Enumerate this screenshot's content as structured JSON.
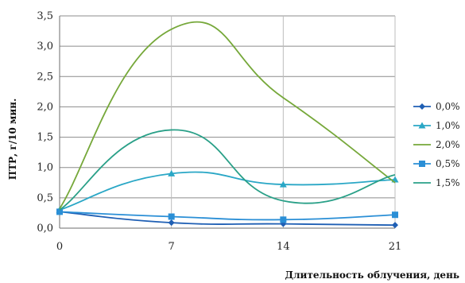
{
  "chart_data": {
    "type": "line",
    "x": [
      0,
      7,
      14,
      21
    ],
    "xticks": [
      "0",
      "7",
      "14",
      "21"
    ],
    "yticks": [
      "0,0",
      "0,5",
      "1,0",
      "1,5",
      "2,0",
      "2,5",
      "3,0",
      "3,5"
    ],
    "ylim": [
      0,
      3.5
    ],
    "xlim": [
      0,
      21
    ],
    "ylabel": "ПТР, г/10 мин.",
    "xlabel": "Длительность облучения, день",
    "grid": {
      "horizontal": true,
      "vertical": true
    },
    "legend_position": "right",
    "series": [
      {
        "name": "0,0%",
        "color": "#1f5fb4",
        "marker": "diamond",
        "values": [
          0.27,
          0.09,
          0.07,
          0.05
        ]
      },
      {
        "name": "1,0%",
        "color": "#2aa7c6",
        "marker": "triangle",
        "values": [
          0.3,
          0.9,
          0.72,
          0.8
        ]
      },
      {
        "name": "2,0%",
        "color": "#76a83a",
        "marker": "none",
        "values": [
          0.32,
          3.28,
          2.15,
          0.75
        ]
      },
      {
        "name": "0,5%",
        "color": "#2b8fd6",
        "marker": "square",
        "values": [
          0.27,
          0.19,
          0.14,
          0.22
        ]
      },
      {
        "name": "1,5%",
        "color": "#2aa088",
        "marker": "none",
        "values": [
          0.3,
          1.62,
          0.45,
          0.88
        ]
      }
    ]
  }
}
